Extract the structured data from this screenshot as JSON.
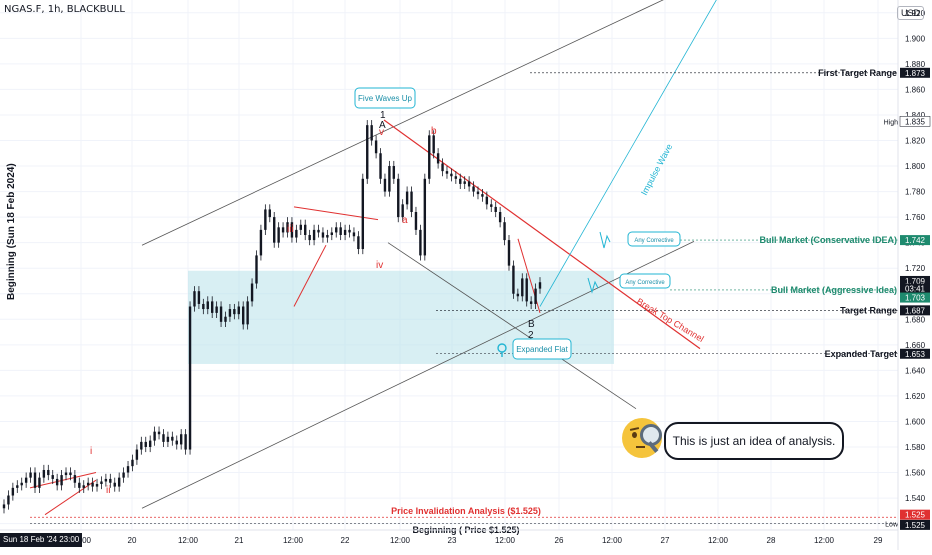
{
  "header": {
    "symbol": "NGAS.F, 1h, BLACKBULL",
    "currency": "USD"
  },
  "vertical_label": "Beginning (Sun 18 Feb 2024)",
  "x_axis_start_label": "Sun 18 Feb '24  23:00",
  "x_ticks": [
    "10:00",
    "20",
    "12:00",
    "21",
    "12:00",
    "22",
    "12:00",
    "23",
    "12:00",
    "26",
    "12:00",
    "27",
    "12:00",
    "28",
    "12:00",
    "29"
  ],
  "y_ticks": [
    "1.920",
    "1.900",
    "1.880",
    "1.860",
    "1.840",
    "1.820",
    "1.800",
    "1.780",
    "1.760",
    "1.740",
    "1.720",
    "1.700",
    "1.680",
    "1.660",
    "1.640",
    "1.620",
    "1.600",
    "1.580",
    "1.560",
    "1.540",
    "1.520"
  ],
  "price_tags": [
    {
      "text": "1.873",
      "price": 1.873,
      "bg": "#131722",
      "fg": "#ffffff"
    },
    {
      "text": "1.835",
      "price": 1.835,
      "bg": "#ffffff",
      "fg": "#131722"
    },
    {
      "text": "1.742",
      "price": 1.742,
      "bg": "#1e8a6e",
      "fg": "#ffffff"
    },
    {
      "text": "1.709",
      "price": 1.71,
      "bg": "#131722",
      "fg": "#ffffff"
    },
    {
      "text": "03:41",
      "price": 1.704,
      "bg": "#131722",
      "fg": "#ffffff"
    },
    {
      "text": "1.703",
      "price": 1.697,
      "bg": "#1e8a6e",
      "fg": "#ffffff"
    },
    {
      "text": "1.687",
      "price": 1.687,
      "bg": "#131722",
      "fg": "#ffffff"
    },
    {
      "text": "1.653",
      "price": 1.653,
      "bg": "#131722",
      "fg": "#ffffff"
    },
    {
      "text": "1.525",
      "price": 1.527,
      "bg": "#e03131",
      "fg": "#ffffff"
    },
    {
      "text": "1.525",
      "price": 1.519,
      "bg": "#131722",
      "fg": "#ffffff"
    }
  ],
  "side_labels": {
    "high": "High",
    "low": "Low"
  },
  "annotations": {
    "first_target": "First Target Range",
    "bull_conservative": "Bull Market (Conservative IDEA)",
    "bull_aggressive": "Bull Market (Aggressive Idea)",
    "target_range": "Target Range",
    "expanded_target": "Expanded Target",
    "price_invalidation": "Price Invalidation Analysis ($1.525)",
    "beginning": "Beginning ( Price $1.525)",
    "five_waves": "Five Waves Up",
    "expanded_flat": "Expanded Flat",
    "any_corrective_1": "Any Corrective",
    "any_corrective_2": "Any Corrective",
    "impulse_wave": "Impulse Wave",
    "break_top_channel": "Break Top Channel",
    "speech": "This is just an idea of analysis.",
    "wave_i": "i",
    "wave_ii": "ii",
    "wave_iii": "iii",
    "wave_iv": "iv",
    "wave_v": "v",
    "wave_1": "1",
    "wave_A": "A",
    "wave_a": "a",
    "wave_b": "b",
    "wave_B": "B",
    "wave_2": "2"
  },
  "colors": {
    "bull": "#1e8a6e",
    "bear": "#e03131",
    "cyan": "#22b5d3",
    "zone": "#b8e2ea",
    "candle": "#131722"
  },
  "chart_data": {
    "type": "candlestick",
    "ylim": [
      1.515,
      1.93
    ],
    "series": [
      {
        "name": "NGAS.F",
        "close": [
          1.535,
          1.542,
          1.548,
          1.55,
          1.552,
          1.556,
          1.56,
          1.548,
          1.556,
          1.562,
          1.558,
          1.555,
          1.55,
          1.558,
          1.56,
          1.558,
          1.552,
          1.548,
          1.55,
          1.552,
          1.549,
          1.551,
          1.553,
          1.555,
          1.552,
          1.549,
          1.556,
          1.56,
          1.565,
          1.57,
          1.578,
          1.584,
          1.58,
          1.585,
          1.592,
          1.59,
          1.584,
          1.588,
          1.585,
          1.582,
          1.59,
          1.578,
          1.69,
          1.702,
          1.692,
          1.688,
          1.694,
          1.685,
          1.69,
          1.678,
          1.682,
          1.688,
          1.684,
          1.69,
          1.676,
          1.694,
          1.708,
          1.73,
          1.75,
          1.766,
          1.76,
          1.74,
          1.752,
          1.748,
          1.756,
          1.744,
          1.75,
          1.754,
          1.746,
          1.742,
          1.75,
          1.748,
          1.744,
          1.746,
          1.748,
          1.752,
          1.746,
          1.75,
          1.748,
          1.745,
          1.735,
          1.79,
          1.832,
          1.82,
          1.81,
          1.79,
          1.78,
          1.8,
          1.79,
          1.76,
          1.77,
          1.78,
          1.764,
          1.75,
          1.73,
          1.79,
          1.824,
          1.81,
          1.802,
          1.796,
          1.794,
          1.792,
          1.79,
          1.786,
          1.788,
          1.784,
          1.78,
          1.778,
          1.776,
          1.77,
          1.768,
          1.764,
          1.756,
          1.742,
          1.722,
          1.7,
          1.698,
          1.712,
          1.694,
          1.692,
          1.704,
          1.709
        ]
      }
    ],
    "annotation_levels": [
      1.873,
      1.742,
      1.703,
      1.687,
      1.653,
      1.525
    ]
  }
}
